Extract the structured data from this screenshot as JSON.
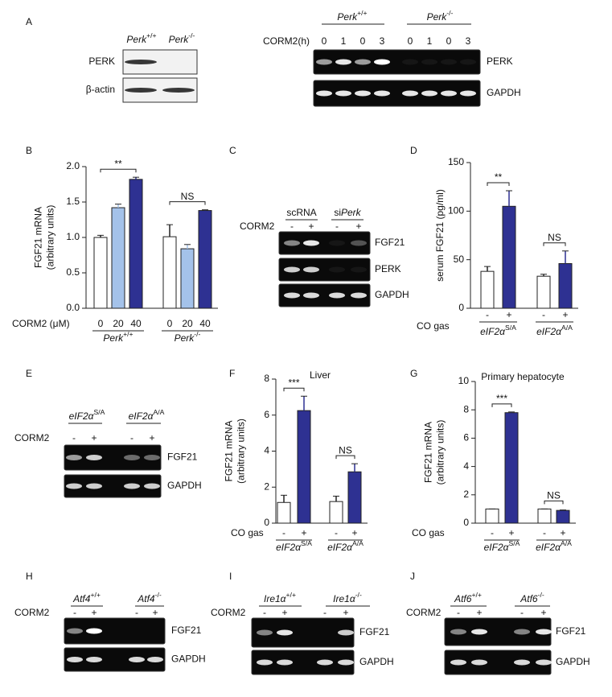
{
  "figure": {
    "A": {
      "label": "A",
      "western": {
        "columns": [
          [
            {
              "text": "Perk",
              "italic": true
            },
            {
              "text": "+/+",
              "sup": true
            }
          ],
          [
            {
              "text": "Perk",
              "italic": true
            },
            {
              "text": "-/-",
              "sup": true
            }
          ]
        ],
        "rows": [
          "PERK",
          "β-actin"
        ]
      },
      "rtpcr": {
        "treatment": "CORM2(h)",
        "groups": [
          [
            {
              "text": "Perk",
              "italic": true
            },
            {
              "text": "+/+",
              "sup": true
            }
          ],
          [
            {
              "text": "Perk",
              "italic": true
            },
            {
              "text": "-/-",
              "sup": true
            }
          ]
        ],
        "lanes": [
          "0",
          "1",
          "0",
          "3",
          "0",
          "1",
          "0",
          "3"
        ],
        "rows": [
          "PERK",
          "GAPDH"
        ]
      }
    },
    "C": {
      "label": "C",
      "treatment": "CORM2",
      "groups": [
        [
          {
            "text": "scRNA"
          }
        ],
        [
          {
            "text": "si"
          },
          {
            "text": "Perk",
            "italic": true
          }
        ]
      ],
      "lanes": [
        "-",
        "+",
        "-",
        "+"
      ],
      "rows": [
        "FGF21",
        "PERK",
        "GAPDH"
      ]
    },
    "E": {
      "label": "E",
      "treatment": "CORM2",
      "groups": [
        [
          {
            "text": "eIF2α",
            "italic": true
          },
          {
            "text": "S/A",
            "sup": true
          }
        ],
        [
          {
            "text": "eIF2α",
            "italic": true
          },
          {
            "text": "A/A",
            "sup": true
          }
        ]
      ],
      "lanes": [
        "-",
        "+",
        "-",
        "+"
      ],
      "rows": [
        "FGF21",
        "GAPDH"
      ]
    },
    "H": {
      "label": "H",
      "treatment": "CORM2",
      "groups": [
        [
          {
            "text": "Atf4",
            "italic": true
          },
          {
            "text": "+/+",
            "sup": true
          }
        ],
        [
          {
            "text": "Atf4",
            "italic": true
          },
          {
            "text": "-/-",
            "sup": true
          }
        ]
      ],
      "lanes": [
        "-",
        "+",
        "-",
        "+"
      ],
      "rows": [
        "FGF21",
        "GAPDH"
      ]
    },
    "I": {
      "label": "I",
      "treatment": "CORM2",
      "groups": [
        [
          {
            "text": "Ire1α",
            "italic": true
          },
          {
            "text": "+/+",
            "sup": true
          }
        ],
        [
          {
            "text": "Ire1α",
            "italic": true
          },
          {
            "text": "-/-",
            "sup": true
          }
        ]
      ],
      "lanes": [
        "-",
        "+",
        "-",
        "+"
      ],
      "rows": [
        "FGF21",
        "GAPDH"
      ]
    },
    "J": {
      "label": "J",
      "treatment": "CORM2",
      "groups": [
        [
          {
            "text": "Atf6",
            "italic": true
          },
          {
            "text": "+/+",
            "sup": true
          }
        ],
        [
          {
            "text": "Atf6",
            "italic": true
          },
          {
            "text": "-/-",
            "sup": true
          }
        ]
      ],
      "lanes": [
        "-",
        "+",
        "-",
        "+"
      ],
      "rows": [
        "FGF21",
        "GAPDH"
      ]
    }
  },
  "chart_data": [
    {
      "type": "bar",
      "label": "B",
      "ylabel": [
        "FGF21 mRNA",
        "(arbitrary units)"
      ],
      "xlabel": "CORM2 (μM)",
      "ylim": [
        0,
        2
      ],
      "yticks": [
        {
          "value": 0,
          "label": "0.0"
        },
        {
          "value": 0.5,
          "label": "0.5"
        },
        {
          "value": 1,
          "label": "1.0"
        },
        {
          "value": 1.5,
          "label": "1.5"
        },
        {
          "value": 2,
          "label": "2.0"
        }
      ],
      "colors": [
        "#ffffff",
        "#a4c2ea",
        "#2e3192"
      ],
      "groups": [
        {
          "label": [
            {
              "text": "Perk",
              "italic": true
            },
            {
              "text": "+/+",
              "sup": true
            }
          ],
          "categories": [
            "0",
            "20",
            "40"
          ],
          "values": [
            1.0,
            1.42,
            1.82
          ],
          "errors": [
            0.03,
            0.05,
            0.03
          ],
          "significance": "**"
        },
        {
          "label": [
            {
              "text": "Perk",
              "italic": true
            },
            {
              "text": "-/-",
              "sup": true
            }
          ],
          "categories": [
            "0",
            "20",
            "40"
          ],
          "values": [
            1.01,
            0.84,
            1.38
          ],
          "errors": [
            0.17,
            0.06,
            0.01
          ],
          "significance": "NS"
        }
      ]
    },
    {
      "type": "bar",
      "label": "D",
      "ylabel": [
        "serum FGF21 (pg/ml)"
      ],
      "xlabel": "CO gas",
      "ylim": [
        0,
        150
      ],
      "yticks": [
        0,
        50,
        100,
        150
      ],
      "colors": [
        "#ffffff",
        "#2e3192"
      ],
      "groups": [
        {
          "label": [
            {
              "text": "eIF2α",
              "italic": true
            },
            {
              "text": "S/A",
              "sup": true
            }
          ],
          "categories": [
            "-",
            "+"
          ],
          "values": [
            38,
            105
          ],
          "errors": [
            5,
            16
          ],
          "significance": "**"
        },
        {
          "label": [
            {
              "text": "eIF2α",
              "italic": true
            },
            {
              "text": "A/A",
              "sup": true
            }
          ],
          "categories": [
            "-",
            "+"
          ],
          "values": [
            33,
            46
          ],
          "errors": [
            2,
            13
          ],
          "significance": "NS"
        }
      ]
    },
    {
      "type": "bar",
      "label": "F",
      "title": "Liver",
      "ylabel": [
        "FGF21 mRNA",
        "(arbitrary units)"
      ],
      "xlabel": "CO gas",
      "ylim": [
        0,
        8
      ],
      "yticks": [
        0,
        2,
        4,
        6,
        8
      ],
      "colors": [
        "#ffffff",
        "#2e3192"
      ],
      "groups": [
        {
          "label": [
            {
              "text": "eIF2α",
              "italic": true
            },
            {
              "text": "S/A",
              "sup": true
            }
          ],
          "categories": [
            "-",
            "+"
          ],
          "values": [
            1.15,
            6.25
          ],
          "errors": [
            0.4,
            0.8
          ],
          "significance": "***"
        },
        {
          "label": [
            {
              "text": "eIF2α",
              "italic": true
            },
            {
              "text": "A/A",
              "sup": true
            }
          ],
          "categories": [
            "-",
            "+"
          ],
          "values": [
            1.2,
            2.85
          ],
          "errors": [
            0.3,
            0.45
          ],
          "significance": "NS"
        }
      ]
    },
    {
      "type": "bar",
      "label": "G",
      "title": "Primary hepatocyte",
      "ylabel": [
        "FGF21 mRNA",
        "(arbitrary units)"
      ],
      "xlabel": "CO gas",
      "ylim": [
        0,
        10
      ],
      "yticks": [
        0,
        2,
        4,
        6,
        8,
        10
      ],
      "colors": [
        "#ffffff",
        "#2e3192"
      ],
      "groups": [
        {
          "label": [
            {
              "text": "eIF2α",
              "italic": true
            },
            {
              "text": "S/A",
              "sup": true
            }
          ],
          "categories": [
            "-",
            "+"
          ],
          "values": [
            1.0,
            7.8
          ],
          "errors": [
            0,
            0.05
          ],
          "significance": "***"
        },
        {
          "label": [
            {
              "text": "eIF2α",
              "italic": true
            },
            {
              "text": "A/A",
              "sup": true
            }
          ],
          "categories": [
            "-",
            "+"
          ],
          "values": [
            1.0,
            0.9
          ],
          "errors": [
            0,
            0.03
          ],
          "significance": "NS"
        }
      ]
    }
  ]
}
